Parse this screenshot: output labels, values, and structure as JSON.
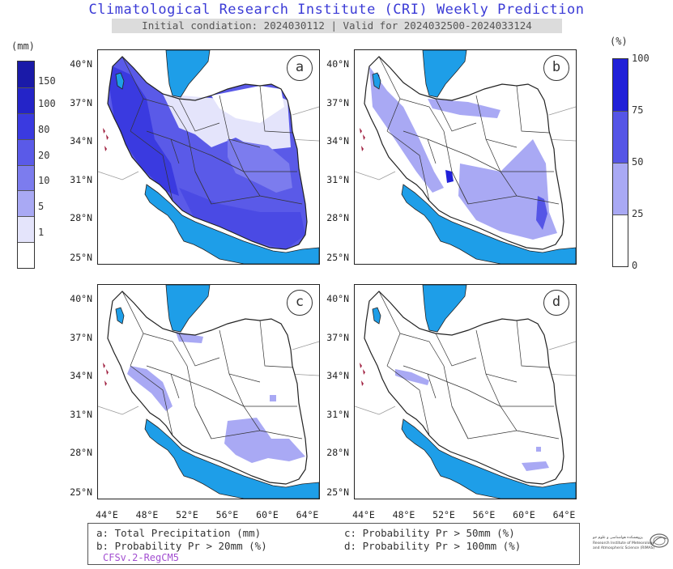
{
  "header": {
    "title": "Climatological Research Institute (CRI) Weekly Prediction",
    "subtitle": "Initial condiation: 2024030112 | Valid for 2024032500-2024033124"
  },
  "left_colorbar": {
    "unit": "(mm)",
    "ticks": [
      "150",
      "100",
      "80",
      "20",
      "10",
      "5",
      "1"
    ],
    "colors": [
      "#1a1aa8",
      "#2424c8",
      "#3a3ae0",
      "#5a5ae8",
      "#7c7cee",
      "#a9a9f4",
      "#e4e4fb",
      "#ffffff"
    ]
  },
  "right_colorbar": {
    "unit": "(%)",
    "ticks": [
      "100",
      "75",
      "50",
      "25",
      "0"
    ],
    "colors": [
      "#2020d8",
      "#5555e6",
      "#a9a9f4",
      "#ffffff"
    ]
  },
  "panels": [
    {
      "label": "a"
    },
    {
      "label": "b"
    },
    {
      "label": "c"
    },
    {
      "label": "d"
    }
  ],
  "axes": {
    "lat_ticks": [
      "40°N",
      "37°N",
      "34°N",
      "31°N",
      "28°N",
      "25°N"
    ],
    "lon_ticks": [
      "44°E",
      "48°E",
      "52°E",
      "56°E",
      "60°E",
      "64°E"
    ]
  },
  "legend": {
    "a": "a: Total Precipitation (mm)",
    "b": "b: Probability Pr > 20mm (%)",
    "c": "c: Probability Pr > 50mm (%)",
    "d": "d: Probability Pr > 100mm (%)",
    "model": "CFSv.2-RegCM5"
  },
  "logo": {
    "line1": "پژوهشکده هواشناسی و علوم جو",
    "line2": "Research Institute of Meteorology",
    "line3": "and Atmospheric Science (RIMAS)"
  },
  "colors": {
    "sea": "#1e9ee8",
    "border": "#222222",
    "title": "#3b3bd6"
  }
}
